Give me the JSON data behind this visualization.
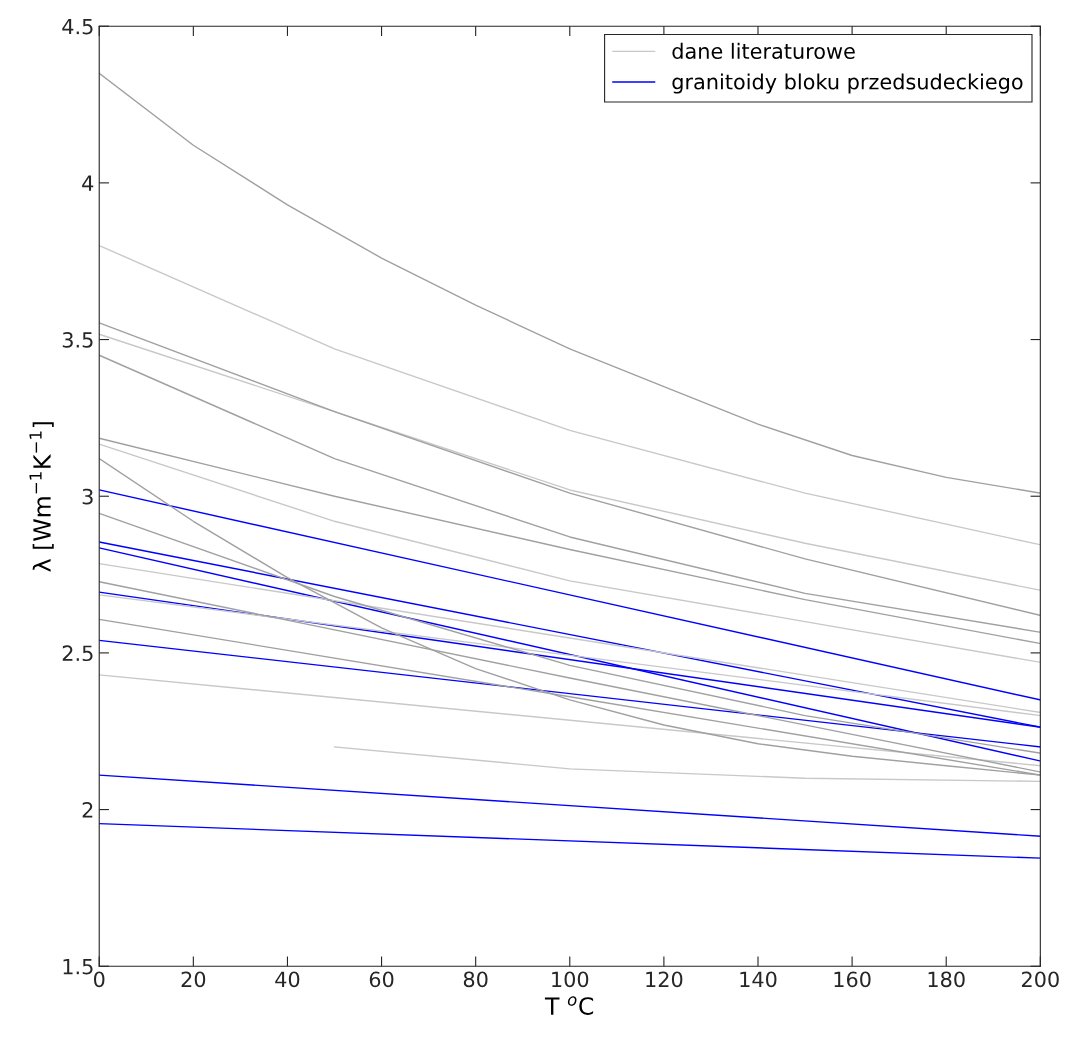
{
  "chart_data": {
    "type": "line",
    "xlabel": "T $^{o}$C",
    "ylabel": "λ [Wm$^{−1}$K$^{−1}$]",
    "xlim": [
      0,
      200
    ],
    "ylim": [
      1.5,
      4.5
    ],
    "xticks": [
      0,
      20,
      40,
      60,
      80,
      100,
      120,
      140,
      160,
      180,
      200
    ],
    "yticks": [
      1.5,
      2,
      2.5,
      3,
      3.5,
      4,
      4.5
    ],
    "grid": false,
    "legend": "top right",
    "marker": "none",
    "line_style": "solid",
    "series": [
      {
        "name": "dane literaturowe",
        "color": "#c8c8c8",
        "x": [
          0,
          50,
          100,
          150,
          200
        ],
        "values": [
          3.8,
          3.47,
          3.21,
          3.01,
          2.845
        ]
      },
      {
        "name": "granitoidy bloku przedsudeckiego",
        "color": "#0000ff",
        "x": [
          0,
          200
        ],
        "values": [
          3.02,
          2.35
        ]
      },
      {
        "color": "#0000ff",
        "x": [
          0,
          200
        ],
        "values": [
          2.854,
          2.263
        ]
      },
      {
        "color": "#0000ff",
        "x": [
          0,
          200
        ],
        "values": [
          2.835,
          2.155
        ]
      },
      {
        "color": "#0000ff",
        "x": [
          0,
          200
        ],
        "values": [
          2.694,
          2.263
        ]
      },
      {
        "color": "#0000ff",
        "x": [
          0,
          200
        ],
        "values": [
          2.54,
          2.2
        ]
      },
      {
        "color": "#0000ff",
        "x": [
          0,
          200
        ],
        "values": [
          2.11,
          1.915
        ]
      },
      {
        "color": "#0000ff",
        "x": [
          0,
          200
        ],
        "values": [
          1.955,
          1.845
        ]
      },
      {
        "color": "#c8c8c8",
        "x": [
          0,
          50,
          100,
          150,
          200
        ],
        "values": [
          3.517,
          3.27,
          3.02,
          2.85,
          2.7
        ]
      },
      {
        "color": "#c8c8c8",
        "x": [
          0,
          50,
          100,
          150,
          200
        ],
        "values": [
          3.166,
          2.92,
          2.73,
          2.6,
          2.47
        ]
      },
      {
        "color": "#c8c8c8",
        "x": [
          0,
          200
        ],
        "values": [
          2.785,
          2.31
        ]
      },
      {
        "color": "#c8c8c8",
        "x": [
          0,
          200
        ],
        "values": [
          2.685,
          2.3
        ]
      },
      {
        "color": "#c8c8c8",
        "x": [
          0,
          200
        ],
        "values": [
          2.43,
          2.14
        ]
      },
      {
        "color": "#c8c8c8",
        "x": [
          50,
          100,
          150,
          200
        ],
        "values": [
          2.2,
          2.13,
          2.1,
          2.09
        ]
      },
      {
        "color": "#a0a0a0",
        "x": [
          0,
          20,
          40,
          60,
          80,
          100,
          120,
          140,
          160,
          180,
          200
        ],
        "values": [
          4.35,
          4.12,
          3.93,
          3.76,
          3.61,
          3.47,
          3.35,
          3.23,
          3.13,
          3.06,
          3.01
        ]
      },
      {
        "color": "#a0a0a0",
        "x": [
          0,
          50,
          100,
          150,
          200
        ],
        "values": [
          3.553,
          3.27,
          3.01,
          2.8,
          2.62
        ]
      },
      {
        "color": "#a0a0a0",
        "x": [
          0,
          50,
          100,
          150,
          200
        ],
        "values": [
          3.45,
          3.12,
          2.87,
          2.69,
          2.566
        ]
      },
      {
        "color": "#a0a0a0",
        "x": [
          0,
          50,
          100,
          150,
          200
        ],
        "values": [
          3.185,
          3.0,
          2.83,
          2.67,
          2.53
        ]
      },
      {
        "color": "#a0a0a0",
        "x": [
          0,
          20,
          40,
          60,
          80,
          100,
          120,
          140,
          160,
          180,
          200
        ],
        "values": [
          3.12,
          2.92,
          2.74,
          2.58,
          2.45,
          2.35,
          2.27,
          2.21,
          2.17,
          2.14,
          2.11
        ]
      },
      {
        "color": "#a0a0a0",
        "x": [
          0,
          50,
          100,
          150,
          200
        ],
        "values": [
          2.945,
          2.68,
          2.46,
          2.3,
          2.18
        ]
      },
      {
        "color": "#a0a0a0",
        "x": [
          0,
          100,
          200
        ],
        "values": [
          2.727,
          2.42,
          2.12
        ]
      },
      {
        "color": "#a0a0a0",
        "x": [
          0,
          100,
          200
        ],
        "values": [
          2.607,
          2.36,
          2.11
        ]
      }
    ]
  }
}
